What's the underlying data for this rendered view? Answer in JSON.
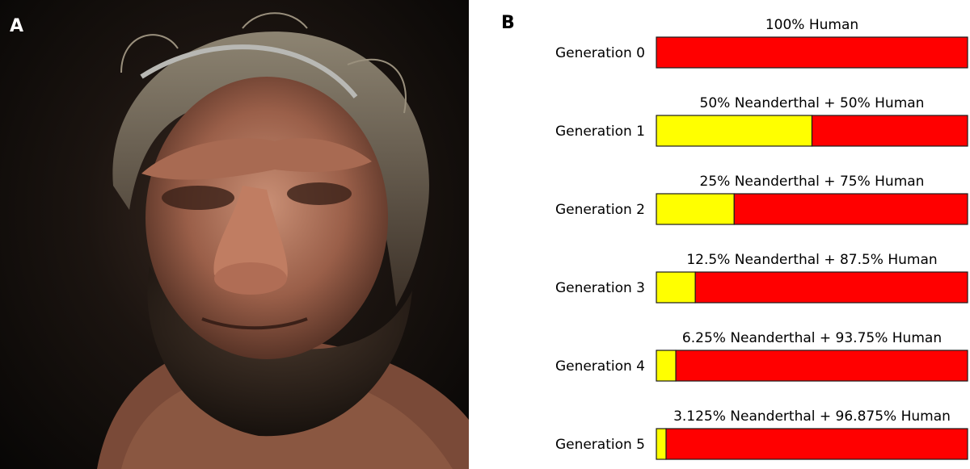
{
  "panel_a": {
    "letter": "A",
    "photo": "neanderthal-reconstruction-photo"
  },
  "panel_b": {
    "letter": "B"
  },
  "colors": {
    "neanderthal": "#ffff00",
    "human": "#ff0000",
    "outline": "#1a1a1a"
  },
  "chart_data": {
    "type": "bar",
    "orientation": "horizontal",
    "stacked": true,
    "normalized": true,
    "categories": [
      "Generation 0",
      "Generation 1",
      "Generation 2",
      "Generation 3",
      "Generation 4",
      "Generation 5"
    ],
    "titles": [
      "100% Human",
      "50% Neanderthal + 50% Human",
      "25% Neanderthal + 75% Human",
      "12.5% Neanderthal + 87.5% Human",
      "6.25% Neanderthal + 93.75% Human",
      "3.125% Neanderthal + 96.875% Human"
    ],
    "series": [
      {
        "name": "Neanderthal",
        "color": "#ffff00",
        "values": [
          0,
          50,
          25,
          12.5,
          6.25,
          3.125
        ]
      },
      {
        "name": "Human",
        "color": "#ff0000",
        "values": [
          100,
          50,
          75,
          87.5,
          93.75,
          96.875
        ]
      }
    ],
    "xlim": [
      0,
      100
    ],
    "grid": false,
    "legend": "none"
  }
}
